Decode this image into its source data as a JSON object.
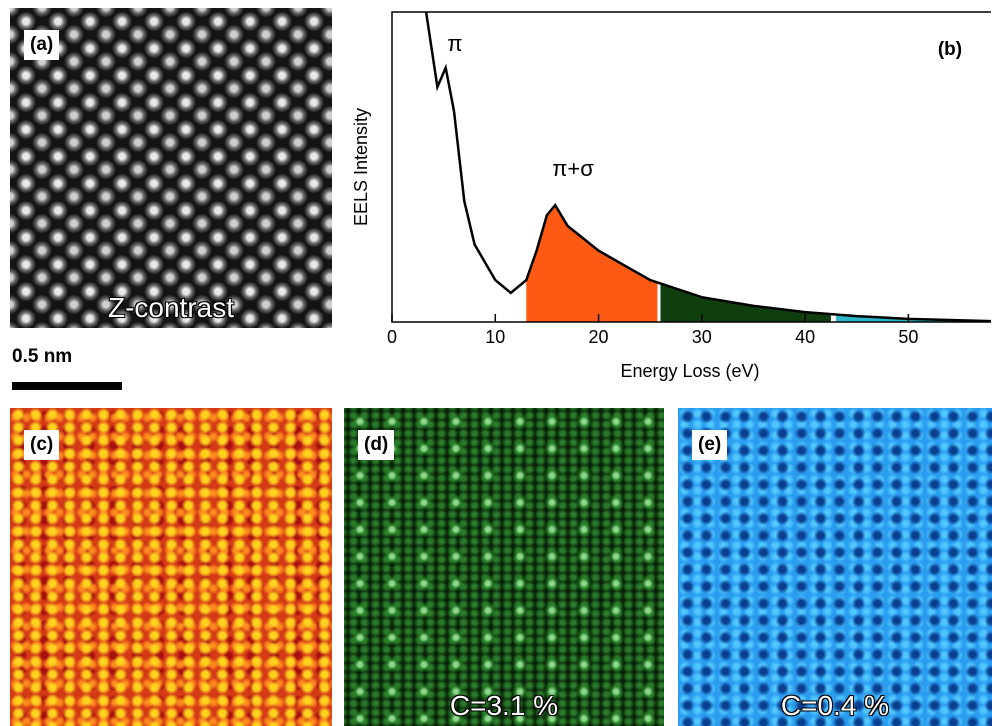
{
  "panels": [
    {
      "label": "(a)",
      "caption": "Z-contrast"
    },
    {
      "label": "(c)"
    },
    {
      "label": "(d)",
      "caption": "C=3.1 %"
    },
    {
      "label": "(e)",
      "caption": "C=0.4 %"
    }
  ],
  "scale_bar": "0.5 nm",
  "chart_data": {
    "type": "line",
    "panel_label": "(b)",
    "xlabel": "Energy Loss (eV)",
    "ylabel": "EELS Intensity",
    "x": [
      3.3,
      4.4,
      5.2,
      6,
      7,
      8,
      10,
      11.5,
      13,
      14,
      15,
      15.8,
      17,
      20,
      25,
      30,
      35,
      40,
      45,
      50,
      58
    ],
    "values": [
      100,
      75.8,
      82,
      68,
      39,
      25,
      13.5,
      9.4,
      13.5,
      23,
      34.5,
      37.7,
      31,
      23,
      13.5,
      8,
      5.2,
      3.2,
      1.9,
      1,
      0.3
    ],
    "color": "#000000",
    "shaded_regions": [
      {
        "from": 13,
        "to": 25.7,
        "color": "#ff5a14"
      },
      {
        "from": 26,
        "to": 42.5,
        "color": "#0f3f0f"
      },
      {
        "from": 43,
        "to": 58,
        "color": "#2ab8c8"
      }
    ],
    "annotations": [
      "π",
      "π+σ"
    ],
    "xlim": [
      0,
      58
    ],
    "ylim": [
      0,
      100
    ],
    "xticks": [
      0,
      10,
      20,
      30,
      40,
      50
    ]
  }
}
